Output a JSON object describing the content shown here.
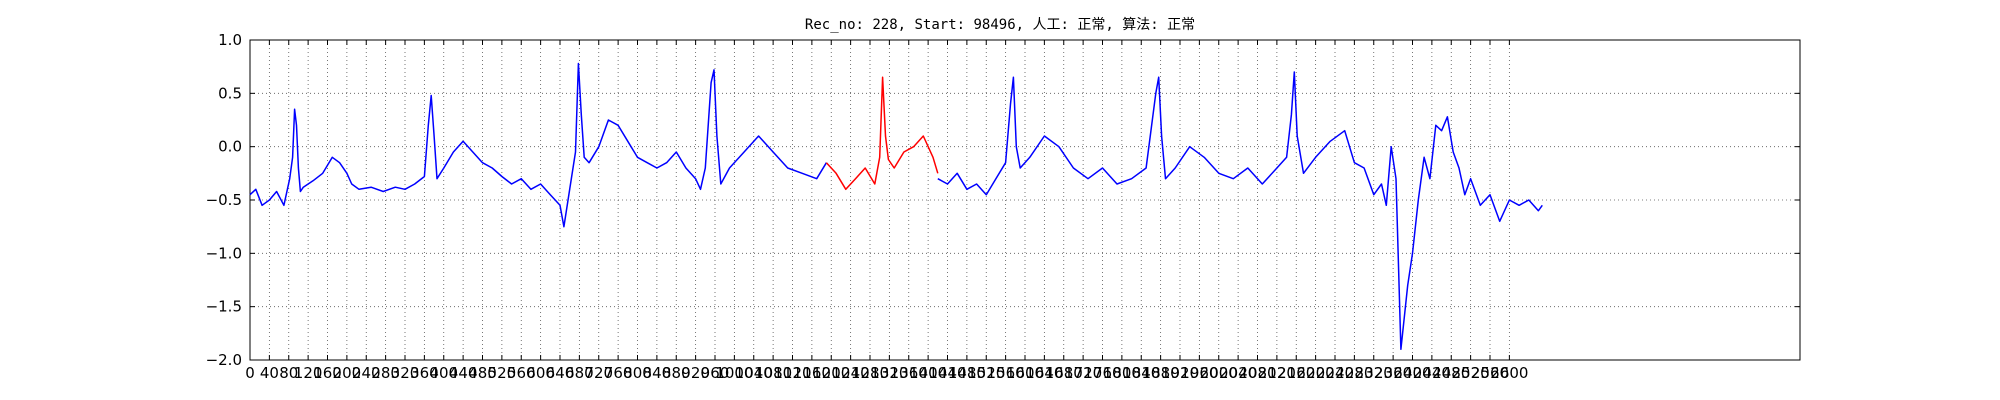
{
  "chart_data": {
    "type": "line",
    "title": "Rec_no: 228, Start: 98496, 人工: 正常, 算法: 正常",
    "xlabel": "",
    "ylabel": "",
    "xlim": [
      0,
      3200
    ],
    "ylim": [
      -2.0,
      1.0
    ],
    "grid": true,
    "y_ticks": [
      1.0,
      0.5,
      0.0,
      -0.5,
      -1.0,
      -1.5,
      -2.0
    ],
    "y_tick_labels": [
      "1.0",
      "0.5",
      "0.0",
      "−0.5",
      "−1.0",
      "−1.5",
      "−2.0"
    ],
    "x_ticks": [
      0,
      40,
      80,
      120,
      160,
      200,
      240,
      280,
      320,
      360,
      400,
      440,
      480,
      520,
      560,
      600,
      640,
      680,
      720,
      760,
      800,
      840,
      880,
      920,
      960,
      1000,
      1040,
      1080,
      1120,
      1160,
      1200,
      1240,
      1280,
      1320,
      1360,
      1400,
      1440,
      1480,
      1520,
      1560,
      1600,
      1640,
      1680,
      1720,
      1760,
      1800,
      1840,
      1880,
      1920,
      1960,
      2000,
      2040,
      2080,
      2120,
      2160,
      2200,
      2240,
      2280,
      2320,
      2360,
      2400,
      2440,
      2480,
      2520,
      2560,
      2600
    ],
    "series": [
      {
        "color": "#0000ff",
        "x": [
          0,
          12,
          25,
          40,
          55,
          70,
          82,
          88,
          92,
          96,
          100,
          104,
          110,
          130,
          150,
          170,
          185,
          200,
          210,
          225,
          250,
          275,
          300,
          320,
          340,
          360,
          368,
          374,
          380,
          386,
          400,
          420,
          440,
          460,
          480,
          500,
          520,
          540,
          560,
          580,
          600,
          620,
          640,
          648,
          660,
          672,
          678,
          684,
          690,
          700,
          720,
          740,
          760,
          780,
          800,
          820,
          840,
          860,
          880,
          900,
          920,
          930,
          940,
          952,
          958,
          964,
          972,
          990,
          1020,
          1050,
          1080,
          1110,
          1140,
          1170,
          1190
        ],
        "y": [
          -0.45,
          -0.4,
          -0.55,
          -0.5,
          -0.42,
          -0.55,
          -0.3,
          -0.1,
          0.35,
          0.2,
          -0.2,
          -0.42,
          -0.38,
          -0.32,
          -0.25,
          -0.1,
          -0.15,
          -0.25,
          -0.35,
          -0.4,
          -0.38,
          -0.42,
          -0.38,
          -0.4,
          -0.35,
          -0.28,
          0.2,
          0.48,
          0.1,
          -0.3,
          -0.2,
          -0.05,
          0.05,
          -0.05,
          -0.15,
          -0.2,
          -0.28,
          -0.35,
          -0.3,
          -0.4,
          -0.35,
          -0.45,
          -0.55,
          -0.75,
          -0.4,
          -0.05,
          0.78,
          0.3,
          -0.1,
          -0.15,
          0.0,
          0.25,
          0.2,
          0.05,
          -0.1,
          -0.15,
          -0.2,
          -0.15,
          -0.05,
          -0.2,
          -0.3,
          -0.4,
          -0.2,
          0.6,
          0.72,
          0.1,
          -0.35,
          -0.2,
          -0.05,
          0.1,
          -0.05,
          -0.2,
          -0.25,
          -0.3,
          -0.15
        ]
      },
      {
        "color": "#ff0000",
        "x": [
          1190,
          1210,
          1230,
          1250,
          1270,
          1290,
          1300,
          1306,
          1312,
          1318,
          1330,
          1350,
          1370,
          1390,
          1410,
          1420
        ],
        "y": [
          -0.15,
          -0.25,
          -0.4,
          -0.3,
          -0.2,
          -0.35,
          -0.1,
          0.65,
          0.1,
          -0.12,
          -0.2,
          -0.05,
          0.0,
          0.1,
          -0.1,
          -0.25
        ]
      },
      {
        "color": "#0000ff",
        "x": [
          1420,
          1440,
          1460,
          1480,
          1500,
          1520,
          1540,
          1560,
          1570,
          1576,
          1582,
          1590,
          1610,
          1640,
          1670,
          1700,
          1730,
          1760,
          1790,
          1820,
          1850,
          1870,
          1876,
          1882,
          1890,
          1910,
          1940,
          1970,
          2000,
          2030,
          2060,
          2090,
          2120,
          2140,
          2150,
          2156,
          2162,
          2175,
          2200,
          2230,
          2260,
          2280,
          2300,
          2320,
          2336,
          2346,
          2356,
          2366,
          2376,
          2390,
          2400,
          2412,
          2424,
          2436,
          2448,
          2460,
          2472,
          2484,
          2496,
          2508,
          2520,
          2540,
          2560,
          2580,
          2600,
          2620,
          2640,
          2660,
          2668
        ],
        "y": [
          -0.3,
          -0.35,
          -0.25,
          -0.4,
          -0.35,
          -0.45,
          -0.3,
          -0.15,
          0.4,
          0.65,
          0.0,
          -0.2,
          -0.1,
          0.1,
          0.0,
          -0.2,
          -0.3,
          -0.2,
          -0.35,
          -0.3,
          -0.2,
          0.5,
          0.65,
          0.1,
          -0.3,
          -0.2,
          0.0,
          -0.1,
          -0.25,
          -0.3,
          -0.2,
          -0.35,
          -0.2,
          -0.1,
          0.3,
          0.7,
          0.1,
          -0.25,
          -0.1,
          0.05,
          0.15,
          -0.15,
          -0.2,
          -0.45,
          -0.35,
          -0.55,
          0.0,
          -0.3,
          -1.9,
          -1.3,
          -1.0,
          -0.5,
          -0.1,
          -0.3,
          0.2,
          0.15,
          0.28,
          -0.05,
          -0.2,
          -0.45,
          -0.3,
          -0.55,
          -0.45,
          -0.7,
          -0.5,
          -0.55,
          -0.5,
          -0.6,
          -0.55
        ]
      }
    ]
  }
}
